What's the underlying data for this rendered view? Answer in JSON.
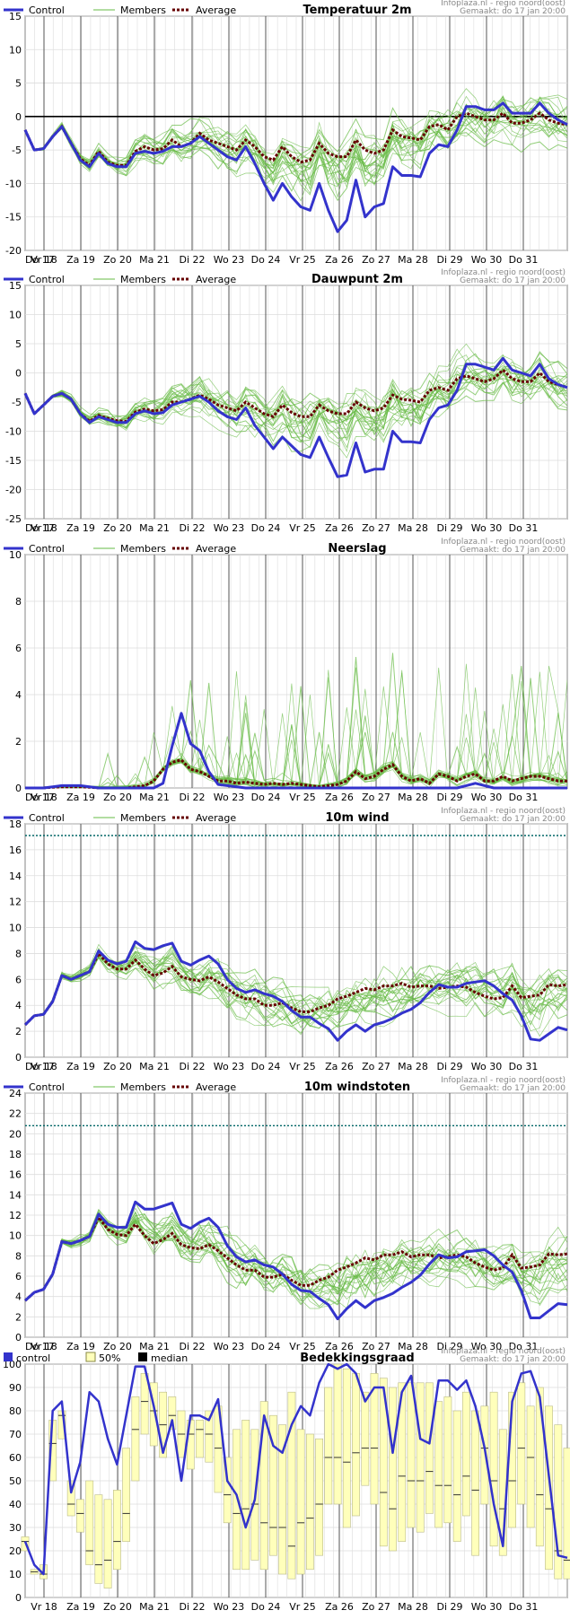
{
  "source_label": "Infoplaza.nl - regio noord(oost)",
  "made_label": "Gemaakt: do 17 jan 20:00",
  "x_labels": [
    "Do 17",
    "Vr 18",
    "Za 19",
    "Zo 20",
    "Ma 21",
    "Di 22",
    "Wo 23",
    "Do 24",
    "Vr 25",
    "Za 26",
    "Zo 27",
    "Ma 28",
    "Di 29",
    "Wo 30",
    "Do 31"
  ],
  "legend_line": {
    "control": "Control",
    "members": "Members",
    "average": "Average"
  },
  "legend_cloud": {
    "control": "control",
    "band": "50%",
    "median": "median"
  },
  "colors": {
    "control": "#3333cc",
    "members": "#66bb44",
    "average": "#660000",
    "band_fill": "#ffffbb",
    "band_stroke": "#bbbb88",
    "zero_line": "#000000",
    "threshold": "#006666"
  },
  "chart_data": [
    {
      "type": "line",
      "title": "Temperatuur 2m",
      "ylim": [
        -20,
        15
      ],
      "yticks": [
        -20,
        -15,
        -10,
        -5,
        0,
        5,
        10,
        15
      ],
      "zero_line": true,
      "steps": 60,
      "series": [
        {
          "name": "Control",
          "values": [
            -2,
            -5,
            -4.8,
            -3,
            -1.5,
            -4,
            -6.5,
            -7.5,
            -5.5,
            -7,
            -7.5,
            -7.5,
            -5.5,
            -5.2,
            -5.5,
            -5.2,
            -4.5,
            -4.5,
            -4,
            -3,
            -4,
            -5,
            -6,
            -6.5,
            -4.5,
            -7,
            -10,
            -12.5,
            -10,
            -12,
            -13.5,
            -14,
            -10,
            -14,
            -17.2,
            -15.5,
            -9.5,
            -15,
            -13.5,
            -13,
            -7.5,
            -8.8,
            -8.8,
            -9,
            -5.5,
            -4.2,
            -4.5,
            -2,
            1.5,
            1.5,
            1,
            1,
            2,
            0.5,
            0.5,
            0.5,
            2,
            0.5,
            -0.5,
            -1.2
          ]
        },
        {
          "name": "Average",
          "values": [
            -2,
            -5,
            -4.8,
            -3,
            -1.5,
            -4,
            -6.3,
            -7.3,
            -5.2,
            -6.8,
            -7.3,
            -7.3,
            -5.2,
            -4.5,
            -5,
            -4.8,
            -3.5,
            -4.5,
            -4,
            -2.5,
            -3.5,
            -4,
            -4.5,
            -5,
            -3.5,
            -4.5,
            -6,
            -6.5,
            -4.5,
            -6,
            -6.8,
            -6.5,
            -4,
            -5.5,
            -6,
            -6,
            -3.5,
            -5,
            -5.5,
            -5,
            -2,
            -3,
            -3.2,
            -3.5,
            -1.5,
            -1.2,
            -2,
            0,
            0.5,
            0,
            -0.5,
            -0.5,
            0.5,
            -1,
            -1,
            -0.5,
            0.5,
            -0.5,
            -1,
            -1.2
          ]
        }
      ]
    },
    {
      "type": "line",
      "title": "Dauwpunt 2m",
      "ylim": [
        -25,
        15
      ],
      "yticks": [
        -25,
        -20,
        -15,
        -10,
        -5,
        0,
        5,
        10,
        15
      ],
      "zero_line": false,
      "steps": 60,
      "series": [
        {
          "name": "Control",
          "values": [
            -3.5,
            -7,
            -5.5,
            -4,
            -3.5,
            -4.5,
            -7,
            -8.5,
            -7.5,
            -8,
            -8.5,
            -8.5,
            -7,
            -6.5,
            -7,
            -6.8,
            -5.5,
            -5,
            -4.5,
            -4,
            -5,
            -6.5,
            -7.5,
            -8,
            -6,
            -9,
            -11,
            -13,
            -11,
            -12.5,
            -14,
            -14.5,
            -11,
            -14.5,
            -17.8,
            -17.5,
            -12,
            -17,
            -16.5,
            -16.5,
            -10,
            -11.8,
            -11.8,
            -12,
            -8,
            -6,
            -5.5,
            -3,
            1.5,
            1.5,
            1,
            0.5,
            2.5,
            0.5,
            0,
            -0.5,
            1.5,
            -1,
            -2,
            -2.5
          ]
        },
        {
          "name": "Average",
          "values": [
            -3.5,
            -7,
            -5.5,
            -4,
            -3.5,
            -4.5,
            -7,
            -8.3,
            -7.3,
            -7.8,
            -8.2,
            -8.3,
            -6.7,
            -6.2,
            -6.5,
            -6.3,
            -5,
            -5,
            -4.5,
            -3.8,
            -4.5,
            -5.5,
            -6,
            -6.5,
            -5,
            -6,
            -7,
            -7.5,
            -5.5,
            -6.8,
            -7.5,
            -7.5,
            -5.5,
            -6.5,
            -7,
            -7,
            -5,
            -6,
            -6.5,
            -6,
            -3.8,
            -4.5,
            -4.7,
            -5,
            -3,
            -2.5,
            -3,
            -1,
            -0.5,
            -1,
            -1.5,
            -1,
            0.5,
            -1,
            -1.5,
            -1.5,
            0,
            -1.5,
            -2,
            -2.5
          ]
        }
      ]
    },
    {
      "type": "line",
      "title": "Neerslag",
      "ylim": [
        0,
        10
      ],
      "yticks": [
        0,
        2,
        4,
        6,
        8,
        10
      ],
      "zero_line": false,
      "steps": 60,
      "series": [
        {
          "name": "Control",
          "values": [
            0,
            0,
            0,
            0.05,
            0.1,
            0.1,
            0.1,
            0.05,
            0,
            0,
            0,
            0,
            0,
            0,
            0,
            0.2,
            1.8,
            3.2,
            1.9,
            1.6,
            0.7,
            0.15,
            0.1,
            0.05,
            0,
            0,
            0,
            0,
            0,
            0,
            0,
            0,
            0,
            0,
            0,
            0,
            0,
            0,
            0,
            0,
            0,
            0,
            0,
            0,
            0,
            0,
            0,
            0,
            0.1,
            0.2,
            0.1,
            0,
            0,
            0,
            0,
            0,
            0,
            0,
            0,
            0
          ]
        },
        {
          "name": "Average",
          "values": [
            0,
            0,
            0,
            0.03,
            0.05,
            0.05,
            0.05,
            0.03,
            0,
            0,
            0,
            0,
            0.05,
            0.1,
            0.3,
            0.8,
            1.1,
            1.2,
            0.8,
            0.7,
            0.5,
            0.3,
            0.3,
            0.2,
            0.25,
            0.2,
            0.15,
            0.2,
            0.15,
            0.2,
            0.15,
            0.1,
            0.05,
            0.1,
            0.15,
            0.3,
            0.7,
            0.4,
            0.5,
            0.8,
            1,
            0.5,
            0.3,
            0.4,
            0.2,
            0.6,
            0.5,
            0.3,
            0.5,
            0.6,
            0.3,
            0.3,
            0.5,
            0.3,
            0.4,
            0.5,
            0.5,
            0.4,
            0.3,
            0.3
          ]
        }
      ]
    },
    {
      "type": "line",
      "title": "10m wind",
      "ylim": [
        0,
        18
      ],
      "yticks": [
        0,
        2,
        4,
        6,
        8,
        10,
        12,
        14,
        16,
        18
      ],
      "threshold": 17.1,
      "zero_line": false,
      "steps": 60,
      "series": [
        {
          "name": "Control",
          "values": [
            2.5,
            3.2,
            3.3,
            4.3,
            6.3,
            6,
            6.3,
            6.6,
            8.2,
            7.5,
            7.2,
            7.4,
            8.9,
            8.4,
            8.3,
            8.6,
            8.8,
            7.4,
            7.1,
            7.5,
            7.8,
            7.2,
            6,
            5.3,
            5,
            5.2,
            4.9,
            4.7,
            4.3,
            3.6,
            3.1,
            3.1,
            2.6,
            2.2,
            1.3,
            2,
            2.5,
            2,
            2.5,
            2.7,
            3,
            3.4,
            3.7,
            4.2,
            5,
            5.6,
            5.4,
            5.4,
            5.7,
            5.8,
            5.9,
            5.5,
            4.9,
            4.4,
            3.2,
            1.4,
            1.3,
            1.8,
            2.3,
            2.1
          ]
        },
        {
          "name": "Average",
          "values": [
            2.5,
            3.2,
            3.3,
            4.3,
            6.3,
            6,
            6.3,
            6.6,
            8,
            7.2,
            6.8,
            6.8,
            7.5,
            6.8,
            6.3,
            6.5,
            7,
            6.2,
            6,
            5.9,
            6.2,
            5.8,
            5.3,
            4.8,
            4.5,
            4.5,
            4,
            4,
            4.2,
            3.8,
            3.5,
            3.5,
            3.8,
            4,
            4.5,
            4.7,
            5,
            5.3,
            5.2,
            5.5,
            5.5,
            5.7,
            5.4,
            5.5,
            5.5,
            5.3,
            5.4,
            5.5,
            5.4,
            5,
            4.7,
            4.5,
            4.6,
            5.5,
            4.6,
            4.7,
            4.8,
            5.6,
            5.5,
            5.6
          ]
        }
      ]
    },
    {
      "type": "line",
      "title": "10m windstoten",
      "ylim": [
        0,
        24
      ],
      "yticks": [
        0,
        2,
        4,
        6,
        8,
        10,
        12,
        14,
        16,
        18,
        20,
        22,
        24
      ],
      "threshold": 20.8,
      "zero_line": false,
      "steps": 60,
      "series": [
        {
          "name": "Control",
          "values": [
            3.6,
            4.4,
            4.7,
            6.2,
            9.4,
            9.2,
            9.5,
            9.9,
            12.1,
            11.1,
            10.8,
            10.8,
            13.3,
            12.6,
            12.6,
            12.9,
            13.2,
            11.1,
            10.7,
            11.3,
            11.7,
            10.8,
            9,
            7.9,
            7.4,
            7.6,
            7.1,
            6.9,
            6.2,
            5.2,
            4.6,
            4.5,
            3.8,
            3.2,
            1.8,
            2.8,
            3.6,
            2.9,
            3.6,
            3.9,
            4.3,
            4.9,
            5.4,
            6.1,
            7.2,
            8.1,
            7.8,
            7.9,
            8.4,
            8.5,
            8.6,
            8,
            7.1,
            6.4,
            4.6,
            1.9,
            1.9,
            2.6,
            3.3,
            3.2
          ]
        },
        {
          "name": "Average",
          "values": [
            3.6,
            4.4,
            4.7,
            6.2,
            9.4,
            9.2,
            9.5,
            9.9,
            11.8,
            10.6,
            10.1,
            10,
            11.1,
            10,
            9.2,
            9.6,
            10.2,
            9.1,
            8.8,
            8.7,
            9.1,
            8.5,
            7.8,
            7.1,
            6.6,
            6.6,
            5.9,
            5.9,
            6.2,
            5.6,
            5.1,
            5.1,
            5.6,
            5.9,
            6.6,
            6.9,
            7.3,
            7.8,
            7.6,
            8.1,
            8.1,
            8.4,
            7.9,
            8.1,
            8.1,
            7.8,
            7.9,
            8.1,
            7.9,
            7.3,
            6.9,
            6.6,
            6.8,
            8.1,
            6.8,
            6.9,
            7.1,
            8.2,
            8.1,
            8.2
          ]
        }
      ]
    },
    {
      "type": "area",
      "title": "Bedekkingsgraad",
      "ylim": [
        0,
        100
      ],
      "yticks": [
        0,
        10,
        20,
        30,
        40,
        50,
        60,
        70,
        80,
        90,
        100
      ],
      "steps": 60,
      "series": [
        {
          "name": "control",
          "values": [
            24,
            14,
            10,
            80,
            84,
            45,
            58,
            88,
            84,
            68,
            57,
            78,
            99,
            99,
            82,
            62,
            76,
            50,
            78,
            78,
            76,
            85,
            50,
            44,
            30,
            42,
            78,
            65,
            62,
            74,
            82,
            78,
            92,
            100,
            98,
            100,
            96,
            84,
            90,
            90,
            62,
            88,
            95,
            68,
            66,
            93,
            93,
            89,
            93,
            82,
            64,
            40,
            22,
            84,
            96,
            97,
            86,
            52,
            18,
            17
          ]
        },
        {
          "name": "50%",
          "low": [
            20,
            10,
            8,
            50,
            68,
            35,
            28,
            14,
            6,
            4,
            12,
            24,
            50,
            70,
            65,
            60,
            72,
            60,
            55,
            60,
            58,
            45,
            32,
            12,
            12,
            16,
            12,
            18,
            10,
            8,
            10,
            12,
            18,
            40,
            40,
            30,
            35,
            48,
            40,
            22,
            20,
            24,
            30,
            28,
            36,
            30,
            32,
            24,
            35,
            18,
            40,
            22,
            18,
            30,
            40,
            30,
            22,
            12,
            8,
            8
          ],
          "high": [
            26,
            12,
            14,
            76,
            80,
            50,
            42,
            50,
            44,
            42,
            46,
            64,
            86,
            96,
            92,
            88,
            86,
            80,
            76,
            76,
            80,
            82,
            60,
            72,
            76,
            72,
            84,
            78,
            74,
            88,
            72,
            70,
            68,
            90,
            100,
            98,
            96,
            88,
            96,
            94,
            90,
            92,
            92,
            92,
            92,
            84,
            86,
            80,
            88,
            80,
            82,
            88,
            72,
            88,
            92,
            82,
            90,
            82,
            74,
            64
          ]
        },
        {
          "name": "median",
          "values": [
            24,
            11,
            10,
            66,
            78,
            40,
            36,
            20,
            14,
            16,
            24,
            36,
            72,
            84,
            80,
            74,
            78,
            70,
            70,
            72,
            70,
            64,
            44,
            36,
            38,
            40,
            32,
            30,
            30,
            22,
            32,
            34,
            40,
            60,
            60,
            58,
            62,
            64,
            64,
            45,
            38,
            52,
            50,
            50,
            54,
            48,
            48,
            44,
            52,
            46,
            64,
            50,
            38,
            50,
            64,
            60,
            44,
            38,
            20,
            16
          ]
        }
      ]
    }
  ]
}
